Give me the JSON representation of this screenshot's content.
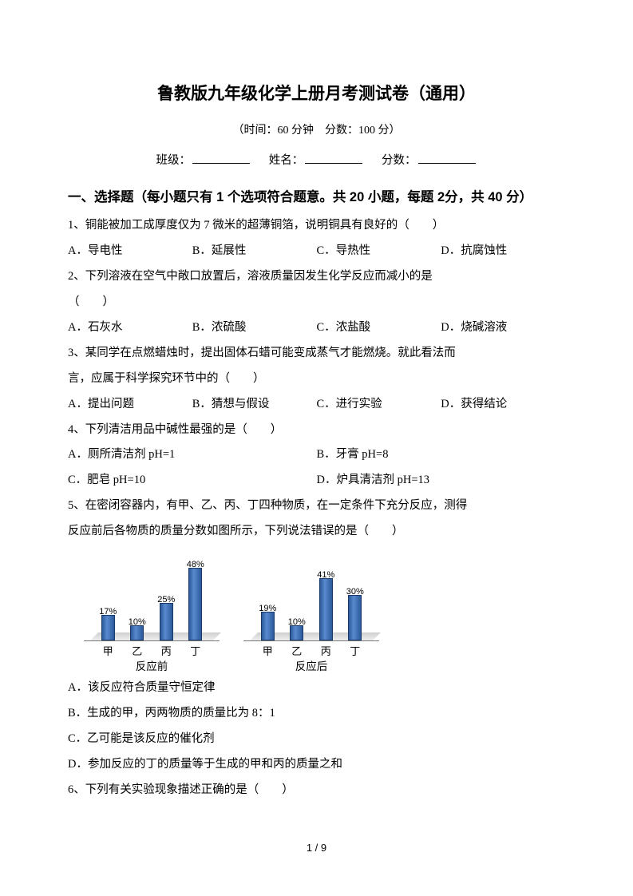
{
  "doc": {
    "title": "鲁教版九年级化学上册月考测试卷（通用）",
    "subtitle": "（时间：60 分钟　分数：100 分）",
    "form": {
      "class_label": "班级：",
      "name_label": "姓名：",
      "score_label": "分数："
    },
    "section1_header": "一、选择题（每小题只有 1 个选项符合题意。共 20 小题，每题 2分，共 40 分）",
    "q1": {
      "text": "1、铜能被加工成厚度仅为 7 微米的超薄铜箔，说明铜具有良好的（　　）",
      "options": {
        "A": "A．导电性",
        "B": "B．延展性",
        "C": "C．导热性",
        "D": "D．抗腐蚀性"
      }
    },
    "q2": {
      "text1": "2、下列溶液在空气中敞口放置后，溶液质量因发生化学反应而减小的是",
      "text2": "（　　）",
      "options": {
        "A": "A．石灰水",
        "B": "B．浓硫酸",
        "C": "C．浓盐酸",
        "D": "D．烧碱溶液"
      }
    },
    "q3": {
      "text1": "3、某同学在点燃蜡烛时，提出固体石蜡可能变成蒸气才能燃烧。就此看法而",
      "text2": "言，应属于科学探究环节中的（　　）",
      "options": {
        "A": "A．提出问题",
        "B": "B．猜想与假设",
        "C": "C．进行实验",
        "D": "D．获得结论"
      }
    },
    "q4": {
      "text": "4、下列清洁用品中碱性最强的是（　　）",
      "options": {
        "A": "A．厕所清洁剂 pH=1",
        "B": "B．牙膏 pH=8",
        "C": "C．肥皂 pH=10",
        "D": "D．炉具清洁剂 pH=13"
      }
    },
    "q5": {
      "text1": "5、在密闭容器内，有甲、乙、丙、丁四种物质，在一定条件下充分反应，测得",
      "text2": "反应前后各物质的质量分数如图所示，下列说法错误的是（　　）",
      "chart_before": {
        "caption": "反应前",
        "x_labels": [
          "甲",
          "乙",
          "丙",
          "丁"
        ],
        "values": [
          17,
          10,
          25,
          48
        ],
        "value_labels": [
          "17%",
          "10%",
          "25%",
          "48%"
        ],
        "bar_color": "#3a6aa8",
        "max": 60
      },
      "chart_after": {
        "caption": "反应后",
        "x_labels": [
          "甲",
          "乙",
          "丙",
          "丁"
        ],
        "values": [
          19,
          10,
          41,
          30
        ],
        "value_labels": [
          "19%",
          "10%",
          "41%",
          "30%"
        ],
        "bar_color": "#3a6aa8",
        "max": 60
      },
      "optA": "A．该反应符合质量守恒定律",
      "optB": "B．生成的甲，丙两物质的质量比为 8：1",
      "optC": "C．乙可能是该反应的催化剂",
      "optD": "D．参加反应的丁的质量等于生成的甲和丙的质量之和"
    },
    "q6": {
      "text": "6、下列有关实验现象描述正确的是（　　）"
    },
    "footer": "1 / 9"
  }
}
